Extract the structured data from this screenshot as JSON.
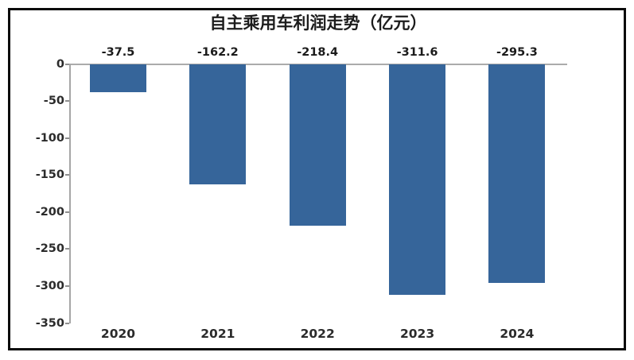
{
  "chart_data": {
    "type": "bar",
    "title": "自主乘用车利润走势（亿元）",
    "categories": [
      "2020",
      "2021",
      "2022",
      "2023",
      "2024"
    ],
    "values": [
      -37.5,
      -162.2,
      -218.4,
      -311.6,
      -295.3
    ],
    "value_labels": [
      "-37.5",
      "-162.2",
      "-218.4",
      "-311.6",
      "-295.3"
    ],
    "y_ticks": [
      0,
      -50,
      -100,
      -150,
      -200,
      -250,
      -300,
      -350
    ],
    "ylim": [
      -350,
      0
    ],
    "xlabel": "",
    "ylabel": "",
    "legend": "none",
    "grid": "zero-baseline-only",
    "orientation": "vertical-negative"
  },
  "colors": {
    "bar_fill": "#36659a",
    "frame_border": "#0a0a0a",
    "title_text": "#1c1c1c",
    "tick_text": "#2b2b2b",
    "axis_line": "#a6a6a6",
    "background": "#ffffff"
  }
}
